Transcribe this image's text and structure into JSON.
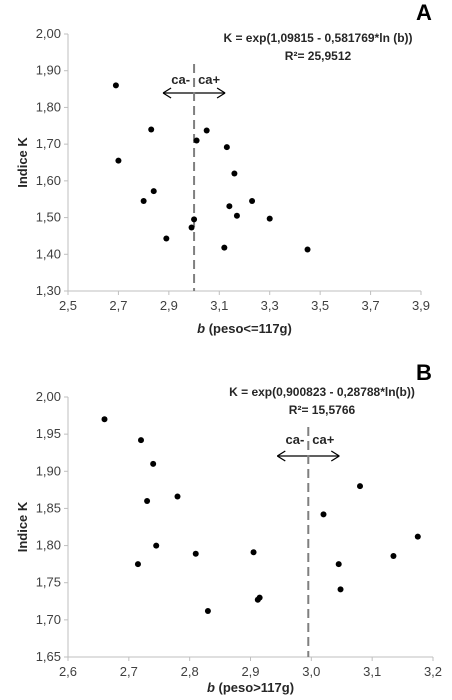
{
  "chart_data": [
    {
      "type": "scatter",
      "panel_letter": "A",
      "equation": "K = exp(1,09815 - 0,581769*ln (b))",
      "r2": "R²= 25,9512",
      "ylabel": "Indice K",
      "xlabel_italic": "b",
      "xlabel_rest": " (peso<=117g)",
      "xlim": [
        2.5,
        3.9
      ],
      "ylim": [
        1.3,
        2.0
      ],
      "xticks": [
        "2,5",
        "2,7",
        "2,9",
        "3,1",
        "3,3",
        "3,5",
        "3,7",
        "3,9"
      ],
      "yticks": [
        "1,30",
        "1,40",
        "1,50",
        "1,60",
        "1,70",
        "1,80",
        "1,90",
        "2,00"
      ],
      "grid": false,
      "divider_x": 3.0,
      "arrow_left_label": "ca-",
      "arrow_right_label": "ca+",
      "marker_color": "#000000",
      "divider_color": "#7f7f7f",
      "x": [
        2.69,
        2.7,
        2.83,
        2.8,
        2.84,
        2.89,
        2.99,
        3.0,
        3.01,
        3.05,
        3.13,
        3.16,
        3.14,
        3.17,
        3.12,
        3.23,
        3.3,
        3.45
      ],
      "y": [
        1.86,
        1.655,
        1.74,
        1.545,
        1.572,
        1.443,
        1.473,
        1.495,
        1.71,
        1.737,
        1.692,
        1.62,
        1.531,
        1.505,
        1.418,
        1.545,
        1.497,
        1.413
      ]
    },
    {
      "type": "scatter",
      "panel_letter": "B",
      "equation": "K = exp(0,900823 - 0,28788*ln(b))",
      "r2": "R²= 15,5766",
      "ylabel": "Indice K",
      "xlabel_italic": "b",
      "xlabel_rest": " (peso>117g)",
      "xlim": [
        2.6,
        3.2
      ],
      "ylim": [
        1.65,
        2.0
      ],
      "xticks": [
        "2,6",
        "2,7",
        "2,8",
        "2,9",
        "3,0",
        "3,1",
        "3,2"
      ],
      "yticks": [
        "1,65",
        "1,70",
        "1,75",
        "1,80",
        "1,85",
        "1,90",
        "1,95",
        "2,00"
      ],
      "grid": false,
      "divider_x": 2.995,
      "arrow_left_label": "ca-",
      "arrow_right_label": "ca+",
      "marker_color": "#000000",
      "divider_color": "#7f7f7f",
      "x": [
        2.66,
        2.715,
        2.72,
        2.74,
        2.73,
        2.78,
        2.745,
        2.81,
        2.905,
        2.83,
        2.915,
        2.912,
        3.02,
        3.08,
        3.045,
        3.048,
        3.135,
        3.175
      ],
      "y": [
        1.97,
        1.775,
        1.942,
        1.91,
        1.86,
        1.866,
        1.8,
        1.789,
        1.791,
        1.712,
        1.73,
        1.727,
        1.842,
        1.88,
        1.775,
        1.741,
        1.786,
        1.812
      ]
    }
  ]
}
